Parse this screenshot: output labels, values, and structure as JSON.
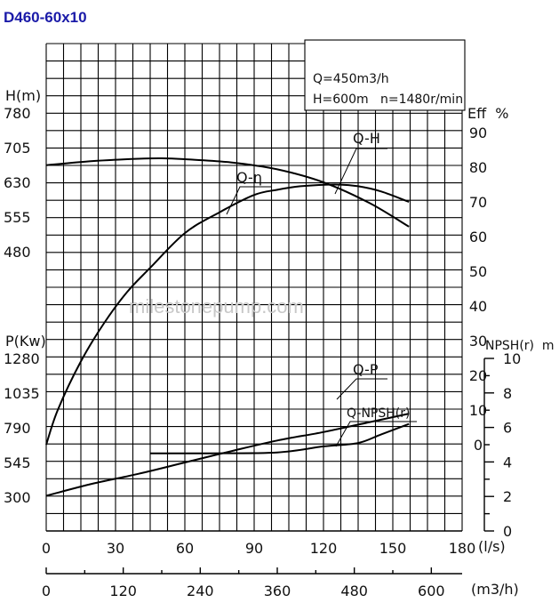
{
  "title": "D460-60x10",
  "watermark": "milestonepump.com",
  "spec": {
    "line1": "Q=450m3/h",
    "line2": "H=600m   n=1480r/min"
  },
  "axes": {
    "h_label": "H(m)",
    "p_label": "P(Kw)",
    "eff_label": "Eff  %",
    "npsh_label": "NPSH(r)  m",
    "q_ls_label": "(l/s)",
    "q_m3h_label": "(m3/h)"
  },
  "chart_data": {
    "type": "line",
    "title": "D460-60x10",
    "x_ls": {
      "label": "(l/s)",
      "range": [
        0,
        180
      ],
      "ticks": [
        0,
        30,
        60,
        90,
        120,
        150,
        180
      ]
    },
    "x_m3h": {
      "label": "(m3/h)",
      "range": [
        0,
        648
      ],
      "ticks": [
        0,
        120,
        240,
        360,
        480,
        600
      ]
    },
    "h_axis": {
      "label": "H(m)",
      "range": [
        330,
        780
      ],
      "ticks": [
        480,
        555,
        630,
        705,
        780
      ]
    },
    "p_axis": {
      "label": "P(Kw)",
      "range": [
        55,
        1280
      ],
      "ticks": [
        300,
        545,
        790,
        1035,
        1280
      ]
    },
    "eff_axis": {
      "label": "Eff  %",
      "range": [
        0,
        90
      ],
      "ticks": [
        0,
        10,
        20,
        30,
        40,
        50,
        60,
        70,
        80,
        90
      ]
    },
    "npsh_axis": {
      "label": "NPSH(r)  m",
      "range": [
        0,
        10
      ],
      "ticks": [
        0,
        2,
        4,
        6,
        8,
        10
      ]
    },
    "grid": true,
    "series": [
      {
        "name": "Q-H",
        "axis": "h",
        "points": [
          [
            0,
            667
          ],
          [
            20,
            676
          ],
          [
            40,
            681
          ],
          [
            50,
            682
          ],
          [
            60,
            680
          ],
          [
            80,
            673
          ],
          [
            100,
            658
          ],
          [
            120,
            630
          ],
          [
            140,
            585
          ],
          [
            157,
            534
          ]
        ]
      },
      {
        "name": "Q-η",
        "axis": "eff",
        "points": [
          [
            0,
            0
          ],
          [
            5,
            10
          ],
          [
            15,
            24
          ],
          [
            25,
            35
          ],
          [
            35,
            44
          ],
          [
            45,
            51
          ],
          [
            60,
            61
          ],
          [
            75,
            67
          ],
          [
            90,
            72
          ],
          [
            100,
            73.5
          ],
          [
            110,
            74.5
          ],
          [
            125,
            75
          ],
          [
            135,
            74.5
          ],
          [
            145,
            73
          ],
          [
            157,
            70
          ]
        ]
      },
      {
        "name": "Q-P",
        "axis": "p",
        "points": [
          [
            0,
            310
          ],
          [
            20,
            395
          ],
          [
            40,
            465
          ],
          [
            60,
            545
          ],
          [
            80,
            625
          ],
          [
            100,
            700
          ],
          [
            120,
            760
          ],
          [
            140,
            830
          ],
          [
            157,
            890
          ]
        ]
      },
      {
        "name": "Q-NPSH(r)",
        "axis": "npsh",
        "points": [
          [
            45,
            4.5
          ],
          [
            70,
            4.5
          ],
          [
            100,
            4.55
          ],
          [
            120,
            4.9
          ],
          [
            135,
            5.1
          ],
          [
            145,
            5.6
          ],
          [
            157,
            6.2
          ]
        ]
      }
    ]
  }
}
